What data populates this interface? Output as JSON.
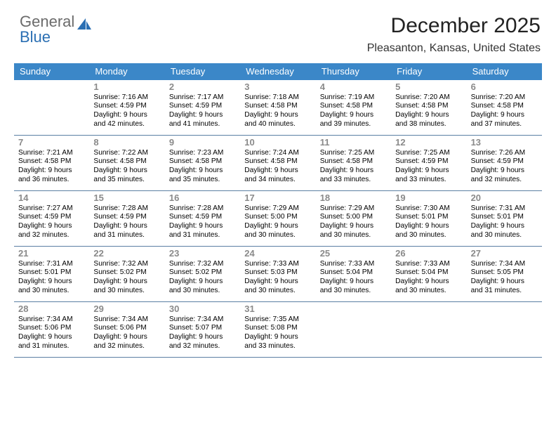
{
  "logo": {
    "top": "General",
    "bottom": "Blue"
  },
  "header": {
    "title": "December 2025",
    "location": "Pleasanton, Kansas, United States"
  },
  "colors": {
    "header_blue": "#3b87c8",
    "daynum_gray": "#8a8a8a",
    "logo_gray": "#6b6b6b",
    "logo_blue": "#2b6fb3",
    "separator": "#5b7fa3",
    "background": "#ffffff"
  },
  "calendar": {
    "day_headers": [
      "Sunday",
      "Monday",
      "Tuesday",
      "Wednesday",
      "Thursday",
      "Friday",
      "Saturday"
    ],
    "weeks": [
      [
        null,
        {
          "day": "1",
          "sunrise": "Sunrise: 7:16 AM",
          "sunset": "Sunset: 4:59 PM",
          "dl1": "Daylight: 9 hours",
          "dl2": "and 42 minutes."
        },
        {
          "day": "2",
          "sunrise": "Sunrise: 7:17 AM",
          "sunset": "Sunset: 4:59 PM",
          "dl1": "Daylight: 9 hours",
          "dl2": "and 41 minutes."
        },
        {
          "day": "3",
          "sunrise": "Sunrise: 7:18 AM",
          "sunset": "Sunset: 4:58 PM",
          "dl1": "Daylight: 9 hours",
          "dl2": "and 40 minutes."
        },
        {
          "day": "4",
          "sunrise": "Sunrise: 7:19 AM",
          "sunset": "Sunset: 4:58 PM",
          "dl1": "Daylight: 9 hours",
          "dl2": "and 39 minutes."
        },
        {
          "day": "5",
          "sunrise": "Sunrise: 7:20 AM",
          "sunset": "Sunset: 4:58 PM",
          "dl1": "Daylight: 9 hours",
          "dl2": "and 38 minutes."
        },
        {
          "day": "6",
          "sunrise": "Sunrise: 7:20 AM",
          "sunset": "Sunset: 4:58 PM",
          "dl1": "Daylight: 9 hours",
          "dl2": "and 37 minutes."
        }
      ],
      [
        {
          "day": "7",
          "sunrise": "Sunrise: 7:21 AM",
          "sunset": "Sunset: 4:58 PM",
          "dl1": "Daylight: 9 hours",
          "dl2": "and 36 minutes."
        },
        {
          "day": "8",
          "sunrise": "Sunrise: 7:22 AM",
          "sunset": "Sunset: 4:58 PM",
          "dl1": "Daylight: 9 hours",
          "dl2": "and 35 minutes."
        },
        {
          "day": "9",
          "sunrise": "Sunrise: 7:23 AM",
          "sunset": "Sunset: 4:58 PM",
          "dl1": "Daylight: 9 hours",
          "dl2": "and 35 minutes."
        },
        {
          "day": "10",
          "sunrise": "Sunrise: 7:24 AM",
          "sunset": "Sunset: 4:58 PM",
          "dl1": "Daylight: 9 hours",
          "dl2": "and 34 minutes."
        },
        {
          "day": "11",
          "sunrise": "Sunrise: 7:25 AM",
          "sunset": "Sunset: 4:58 PM",
          "dl1": "Daylight: 9 hours",
          "dl2": "and 33 minutes."
        },
        {
          "day": "12",
          "sunrise": "Sunrise: 7:25 AM",
          "sunset": "Sunset: 4:59 PM",
          "dl1": "Daylight: 9 hours",
          "dl2": "and 33 minutes."
        },
        {
          "day": "13",
          "sunrise": "Sunrise: 7:26 AM",
          "sunset": "Sunset: 4:59 PM",
          "dl1": "Daylight: 9 hours",
          "dl2": "and 32 minutes."
        }
      ],
      [
        {
          "day": "14",
          "sunrise": "Sunrise: 7:27 AM",
          "sunset": "Sunset: 4:59 PM",
          "dl1": "Daylight: 9 hours",
          "dl2": "and 32 minutes."
        },
        {
          "day": "15",
          "sunrise": "Sunrise: 7:28 AM",
          "sunset": "Sunset: 4:59 PM",
          "dl1": "Daylight: 9 hours",
          "dl2": "and 31 minutes."
        },
        {
          "day": "16",
          "sunrise": "Sunrise: 7:28 AM",
          "sunset": "Sunset: 4:59 PM",
          "dl1": "Daylight: 9 hours",
          "dl2": "and 31 minutes."
        },
        {
          "day": "17",
          "sunrise": "Sunrise: 7:29 AM",
          "sunset": "Sunset: 5:00 PM",
          "dl1": "Daylight: 9 hours",
          "dl2": "and 30 minutes."
        },
        {
          "day": "18",
          "sunrise": "Sunrise: 7:29 AM",
          "sunset": "Sunset: 5:00 PM",
          "dl1": "Daylight: 9 hours",
          "dl2": "and 30 minutes."
        },
        {
          "day": "19",
          "sunrise": "Sunrise: 7:30 AM",
          "sunset": "Sunset: 5:01 PM",
          "dl1": "Daylight: 9 hours",
          "dl2": "and 30 minutes."
        },
        {
          "day": "20",
          "sunrise": "Sunrise: 7:31 AM",
          "sunset": "Sunset: 5:01 PM",
          "dl1": "Daylight: 9 hours",
          "dl2": "and 30 minutes."
        }
      ],
      [
        {
          "day": "21",
          "sunrise": "Sunrise: 7:31 AM",
          "sunset": "Sunset: 5:01 PM",
          "dl1": "Daylight: 9 hours",
          "dl2": "and 30 minutes."
        },
        {
          "day": "22",
          "sunrise": "Sunrise: 7:32 AM",
          "sunset": "Sunset: 5:02 PM",
          "dl1": "Daylight: 9 hours",
          "dl2": "and 30 minutes."
        },
        {
          "day": "23",
          "sunrise": "Sunrise: 7:32 AM",
          "sunset": "Sunset: 5:02 PM",
          "dl1": "Daylight: 9 hours",
          "dl2": "and 30 minutes."
        },
        {
          "day": "24",
          "sunrise": "Sunrise: 7:33 AM",
          "sunset": "Sunset: 5:03 PM",
          "dl1": "Daylight: 9 hours",
          "dl2": "and 30 minutes."
        },
        {
          "day": "25",
          "sunrise": "Sunrise: 7:33 AM",
          "sunset": "Sunset: 5:04 PM",
          "dl1": "Daylight: 9 hours",
          "dl2": "and 30 minutes."
        },
        {
          "day": "26",
          "sunrise": "Sunrise: 7:33 AM",
          "sunset": "Sunset: 5:04 PM",
          "dl1": "Daylight: 9 hours",
          "dl2": "and 30 minutes."
        },
        {
          "day": "27",
          "sunrise": "Sunrise: 7:34 AM",
          "sunset": "Sunset: 5:05 PM",
          "dl1": "Daylight: 9 hours",
          "dl2": "and 31 minutes."
        }
      ],
      [
        {
          "day": "28",
          "sunrise": "Sunrise: 7:34 AM",
          "sunset": "Sunset: 5:06 PM",
          "dl1": "Daylight: 9 hours",
          "dl2": "and 31 minutes."
        },
        {
          "day": "29",
          "sunrise": "Sunrise: 7:34 AM",
          "sunset": "Sunset: 5:06 PM",
          "dl1": "Daylight: 9 hours",
          "dl2": "and 32 minutes."
        },
        {
          "day": "30",
          "sunrise": "Sunrise: 7:34 AM",
          "sunset": "Sunset: 5:07 PM",
          "dl1": "Daylight: 9 hours",
          "dl2": "and 32 minutes."
        },
        {
          "day": "31",
          "sunrise": "Sunrise: 7:35 AM",
          "sunset": "Sunset: 5:08 PM",
          "dl1": "Daylight: 9 hours",
          "dl2": "and 33 minutes."
        },
        null,
        null,
        null
      ]
    ]
  }
}
